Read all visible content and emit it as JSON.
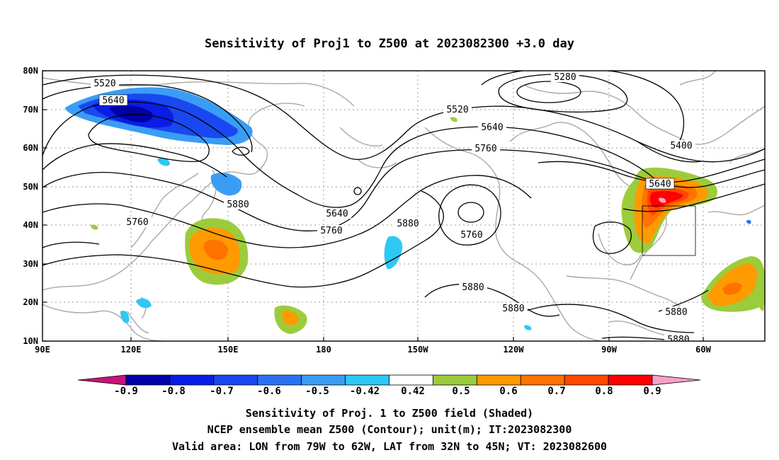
{
  "title": "Sensitivity of Proj1 to Z500 at 2023082300 +3.0 day",
  "lat_labels": [
    "80N",
    "70N",
    "60N",
    "50N",
    "40N",
    "30N",
    "20N",
    "10N"
  ],
  "lon_labels": [
    "90E",
    "120E",
    "150E",
    "180",
    "150W",
    "120W",
    "90W",
    "60W"
  ],
  "contour_labels": [
    "5520",
    "5640",
    "5280",
    "5520",
    "5640",
    "5760",
    "5400",
    "5640",
    "5640",
    "5880",
    "5760",
    "5760",
    "5880",
    "5760",
    "5880",
    "5880",
    "5880",
    "5880"
  ],
  "colorbar": {
    "labels": [
      "-0.9",
      "-0.8",
      "-0.7",
      "-0.6",
      "-0.5",
      "-0.42",
      "0.42",
      "0.5",
      "0.6",
      "0.7",
      "0.8",
      "0.9"
    ],
    "colors": [
      "#c8137a",
      "#0000a8",
      "#0a1de6",
      "#1a48f0",
      "#2a72f2",
      "#3a9df5",
      "#2ec8f5",
      "#ffffff",
      "#9ccc3c",
      "#ff9a00",
      "#ff7200",
      "#ff4800",
      "#ff0000",
      "#f8a0c8"
    ]
  },
  "captions": [
    "Sensitivity of Proj. 1 to Z500 field (Shaded)",
    "NCEP ensemble mean Z500 (Contour); unit(m); IT:2023082300",
    "Valid area: LON from 79W to 62W, LAT from 32N to 45N; VT: 2023082600"
  ],
  "valid_area": {
    "lon": [
      -79,
      -62
    ],
    "lat": [
      32,
      45
    ]
  }
}
